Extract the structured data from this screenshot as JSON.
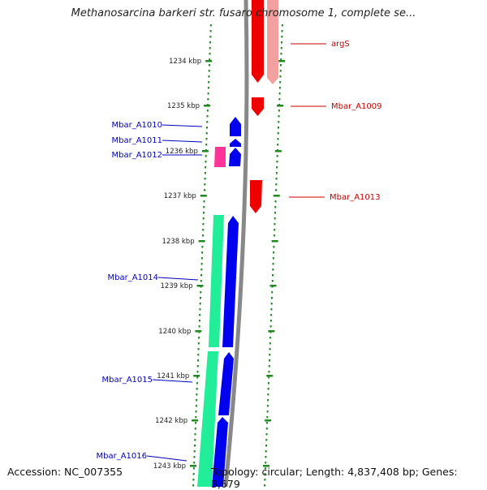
{
  "title": "Methanosarcina barkeri str. fusaro chromosome 1, complete se...",
  "footer": {
    "accession": "Accession: NC_007355",
    "topology": "Topology: circular; Length: 4,837,408 bp; Genes: 3,679"
  },
  "colors": {
    "forward_cds": "#0000ee",
    "forward_label": "#0000bb",
    "reverse_cds": "#ee0000",
    "reverse_label": "#cc0000",
    "rna_forward": "#22ee99",
    "rna_misc": "#ff3399",
    "rna_reverse": "#f2a0a0",
    "backbone": "#888888",
    "tick": "#228822"
  },
  "ticks": [
    {
      "label": "1234 kbp"
    },
    {
      "label": "1235 kbp"
    },
    {
      "label": "1236 kbp"
    },
    {
      "label": "1237 kbp"
    },
    {
      "label": "1238 kbp"
    },
    {
      "label": "1239 kbp"
    },
    {
      "label": "1240 kbp"
    },
    {
      "label": "1241 kbp"
    },
    {
      "label": "1242 kbp"
    },
    {
      "label": "1243 kbp"
    }
  ],
  "features": {
    "reverse": [
      {
        "name": "argS",
        "color": "#ee0000"
      },
      {
        "name": "argS-rna",
        "color": "#f2a0a0"
      },
      {
        "name": "Mbar_A1009",
        "color": "#ee0000"
      },
      {
        "name": "Mbar_A1013",
        "color": "#ee0000"
      }
    ],
    "forward": [
      {
        "name": "Mbar_A1010",
        "color": "#0000ee"
      },
      {
        "name": "Mbar_A1011",
        "color": "#0000ee"
      },
      {
        "name": "Mbar_A1012",
        "color": "#0000ee"
      },
      {
        "name": "Mbar_A1012-misc",
        "color": "#ff3399"
      },
      {
        "name": "Mbar_A1014",
        "color": "#0000ee"
      },
      {
        "name": "Mbar_A1014-rna",
        "color": "#22ee99"
      },
      {
        "name": "Mbar_A1015",
        "color": "#0000ee"
      },
      {
        "name": "Mbar_A1015-rna",
        "color": "#22ee99"
      },
      {
        "name": "Mbar_A1016",
        "color": "#0000ee"
      }
    ]
  },
  "labels": {
    "right": [
      "argS",
      "Mbar_A1009",
      "Mbar_A1013"
    ],
    "left": [
      "Mbar_A1010",
      "Mbar_A1011",
      "Mbar_A1012",
      "Mbar_A1014",
      "Mbar_A1015",
      "Mbar_A1016"
    ]
  }
}
